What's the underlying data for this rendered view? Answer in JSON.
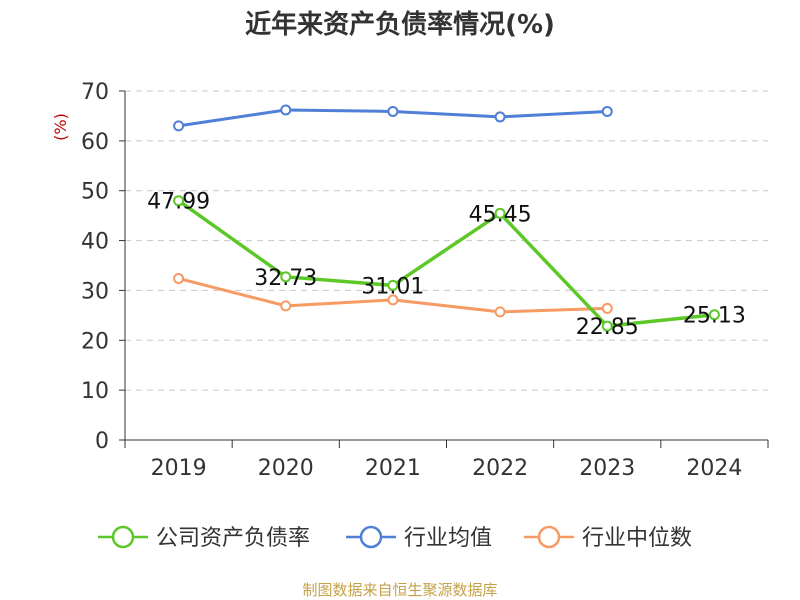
{
  "chart_data": {
    "type": "line",
    "title": "近年来资产负债率情况(%)",
    "ylabel": "(%)",
    "categories": [
      "2019",
      "2020",
      "2021",
      "2022",
      "2023",
      "2024"
    ],
    "ylim": [
      0,
      70
    ],
    "yticks": [
      "0",
      "10",
      "20",
      "30",
      "40",
      "50",
      "60",
      "70"
    ],
    "grid": true,
    "legend_position": "bottom",
    "series": [
      {
        "name": "公司资产负债率",
        "color": "#5cc828",
        "values": [
          47.99,
          32.73,
          31.01,
          45.45,
          22.85,
          25.13
        ],
        "labels": [
          "47.99",
          "32.73",
          "31.01",
          "45.45",
          "22.85",
          "25.13"
        ]
      },
      {
        "name": "行业均值",
        "color": "#4f7fd6",
        "values": [
          63.0,
          66.2,
          65.9,
          64.8,
          65.9,
          null
        ]
      },
      {
        "name": "行业中位数",
        "color": "#f79a63",
        "values": [
          32.4,
          26.9,
          28.1,
          25.7,
          26.4,
          null
        ]
      }
    ]
  },
  "source": "制图数据来自恒生聚源数据库"
}
